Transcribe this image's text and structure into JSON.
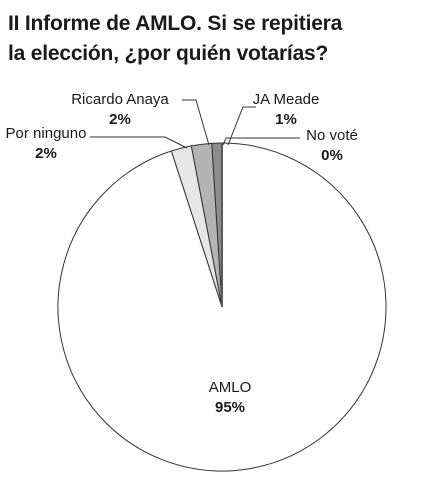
{
  "title_lines": [
    "II Informe de AMLO. Si se repitiera",
    "la elección, ¿por quién votarías?"
  ],
  "chart_data": {
    "type": "pie",
    "title": "II Informe de AMLO. Si se repitiera la elección, ¿por quién votarías?",
    "slices": [
      {
        "name": "JA Meade",
        "value": 1,
        "label": "1%",
        "color": "#8c8c8c"
      },
      {
        "name": "Ricardo Anaya",
        "value": 2,
        "label": "2%",
        "color": "#b3b3b3"
      },
      {
        "name": "Por ninguno",
        "value": 2,
        "label": "2%",
        "color": "#e6e6e6"
      },
      {
        "name": "AMLO",
        "value": 95,
        "label": "95%",
        "color": "#ffffff"
      },
      {
        "name": "No voté",
        "value": 0,
        "label": "0%",
        "color": "#5a5a5a"
      }
    ],
    "start_angle_deg": 0,
    "direction": "counterclockwise"
  }
}
